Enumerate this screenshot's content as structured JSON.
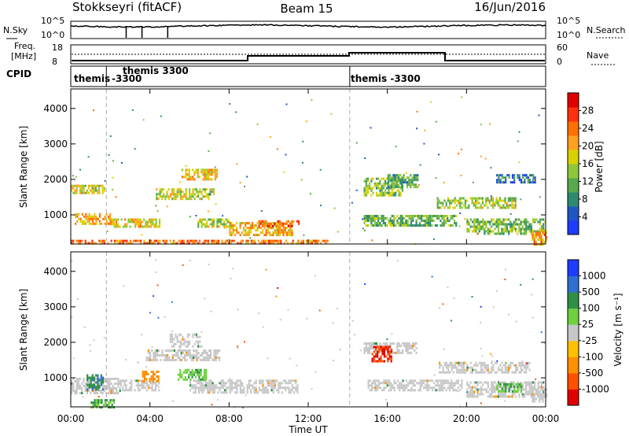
{
  "header": {
    "site": "Stokkseyri (fitACF)",
    "beam": "Beam 15",
    "date": "16/Jun/2016"
  },
  "noise_panel": {
    "left_label": "N.Sky",
    "right_label": "N.Search",
    "left_ticks": [
      "10^5",
      "10^0"
    ],
    "right_ticks": [
      "10^5",
      "10^0"
    ]
  },
  "freq_panel": {
    "left_label_1": "Freq.",
    "left_label_2": "[MHz]",
    "right_label": "Nave",
    "left_ticks": [
      "18",
      "8"
    ],
    "right_ticks": [
      "60",
      "0"
    ]
  },
  "cpid_panel": {
    "label": "CPID",
    "segments": [
      {
        "line1": "themis",
        "line2": ""
      },
      {
        "line1": "themis 3300",
        "line2": "-3300"
      },
      {
        "line1": "themis -3300",
        "line2": ""
      }
    ],
    "boundaries_hours": [
      1.8,
      14.1
    ]
  },
  "colors": {
    "power": [
      "#1e3cff",
      "#1f55c4",
      "#2f8a70",
      "#58a84e",
      "#8dc83a",
      "#d9d200",
      "#ffa020",
      "#ff7000",
      "#ff3010",
      "#e00000"
    ],
    "velocity": {
      "v1000": "#1e3cff",
      "v500": "#2e6fd0",
      "v100": "#2f8f46",
      "v25": "#6fd040",
      "vzero": "#c8c8c8",
      "vneg25": "#ffc000",
      "vneg100": "#ff9000",
      "vneg500": "#ff5000",
      "vneg1000": "#e00000"
    }
  },
  "chart_data": [
    {
      "type": "heatmap",
      "name": "power",
      "ylabel": "Slant Range [km]",
      "ylim": [
        180,
        4550
      ],
      "yticks": [
        "1000",
        "2000",
        "3000",
        "4000"
      ],
      "colorbar": {
        "label": "Power [dB]",
        "ticks": [
          "4",
          "8",
          "12",
          "16",
          "20",
          "24",
          "28"
        ],
        "range": [
          0,
          30
        ]
      },
      "xlim_hours": [
        0,
        24
      ],
      "regions": [
        {
          "t0": 0.0,
          "t1": 1.7,
          "r0": 1650,
          "r1": 1850,
          "v": 16
        },
        {
          "t0": 0.2,
          "t1": 2.2,
          "r0": 780,
          "r1": 1050,
          "v": 19
        },
        {
          "t0": 2.0,
          "t1": 4.5,
          "r0": 700,
          "r1": 900,
          "v": 17
        },
        {
          "t0": 4.3,
          "t1": 7.2,
          "r0": 1450,
          "r1": 1750,
          "v": 15
        },
        {
          "t0": 5.6,
          "t1": 7.4,
          "r0": 2000,
          "r1": 2300,
          "v": 18
        },
        {
          "t0": 6.4,
          "t1": 8.0,
          "r0": 700,
          "r1": 900,
          "v": 14
        },
        {
          "t0": 8.0,
          "t1": 11.2,
          "r0": 450,
          "r1": 800,
          "v": 19
        },
        {
          "t0": 9.3,
          "t1": 11.5,
          "r0": 700,
          "r1": 850,
          "v": 24
        },
        {
          "t0": 0.0,
          "t1": 13.0,
          "r0": 200,
          "r1": 300,
          "v": 22
        },
        {
          "t0": 14.8,
          "t1": 16.8,
          "r0": 1550,
          "r1": 2050,
          "v": 13
        },
        {
          "t0": 16.0,
          "t1": 17.5,
          "r0": 1800,
          "r1": 2150,
          "v": 10
        },
        {
          "t0": 14.8,
          "t1": 19.5,
          "r0": 700,
          "r1": 1000,
          "v": 11
        },
        {
          "t0": 18.5,
          "t1": 22.5,
          "r0": 1200,
          "r1": 1500,
          "v": 14
        },
        {
          "t0": 20.0,
          "t1": 24.0,
          "r0": 500,
          "r1": 900,
          "v": 12
        },
        {
          "t0": 23.3,
          "t1": 24.0,
          "r0": 200,
          "r1": 600,
          "v": 20
        },
        {
          "t0": 21.5,
          "t1": 23.5,
          "r0": 1900,
          "r1": 2150,
          "v": 6
        }
      ]
    },
    {
      "type": "heatmap",
      "name": "velocity",
      "xlabel": "Time UT",
      "ylabel": "Slant Range [km]",
      "ylim": [
        180,
        4550
      ],
      "yticks": [
        "1000",
        "2000",
        "3000",
        "4000"
      ],
      "xticks": [
        "00:00",
        "04:00",
        "08:00",
        "12:00",
        "16:00",
        "20:00",
        "00:00"
      ],
      "colorbar": {
        "label": "Velocity [m s⁻¹]",
        "ticks": [
          "1000",
          "500",
          "100",
          "25",
          "-25",
          "-100",
          "-500",
          "-1000"
        ]
      },
      "xlim_hours": [
        0,
        24
      ],
      "regions": [
        {
          "t0": 0.0,
          "t1": 2.5,
          "r0": 600,
          "r1": 1000,
          "v": 0
        },
        {
          "t0": 2.5,
          "t1": 4.5,
          "r0": 650,
          "r1": 950,
          "v": 0
        },
        {
          "t0": 3.8,
          "t1": 7.5,
          "r0": 1500,
          "r1": 1800,
          "v": 0
        },
        {
          "t0": 5.0,
          "t1": 6.6,
          "r0": 1900,
          "r1": 2250,
          "v": 0
        },
        {
          "t0": 6.0,
          "t1": 11.5,
          "r0": 600,
          "r1": 950,
          "v": 0
        },
        {
          "t0": 14.8,
          "t1": 17.5,
          "r0": 1700,
          "r1": 2000,
          "v": 0
        },
        {
          "t0": 15.2,
          "t1": 16.2,
          "r0": 1500,
          "r1": 1900,
          "v": -700
        },
        {
          "t0": 15.0,
          "t1": 19.8,
          "r0": 650,
          "r1": 950,
          "v": 0
        },
        {
          "t0": 18.6,
          "t1": 23.2,
          "r0": 1150,
          "r1": 1450,
          "v": 0
        },
        {
          "t0": 20.0,
          "t1": 24.0,
          "r0": 450,
          "r1": 900,
          "v": 0
        },
        {
          "t0": 21.5,
          "t1": 22.8,
          "r0": 600,
          "r1": 850,
          "v": 60
        },
        {
          "t0": 5.4,
          "t1": 6.8,
          "r0": 950,
          "r1": 1250,
          "v": 50
        },
        {
          "t0": 3.6,
          "t1": 4.4,
          "r0": 900,
          "r1": 1200,
          "v": -150
        },
        {
          "t0": 1.0,
          "t1": 2.2,
          "r0": 200,
          "r1": 400,
          "v": 60
        },
        {
          "t0": 0.8,
          "t1": 1.6,
          "r0": 700,
          "r1": 1100,
          "v": 300
        },
        {
          "t0": 23.3,
          "t1": 24.0,
          "r0": 350,
          "r1": 700,
          "v": 0
        }
      ]
    }
  ]
}
